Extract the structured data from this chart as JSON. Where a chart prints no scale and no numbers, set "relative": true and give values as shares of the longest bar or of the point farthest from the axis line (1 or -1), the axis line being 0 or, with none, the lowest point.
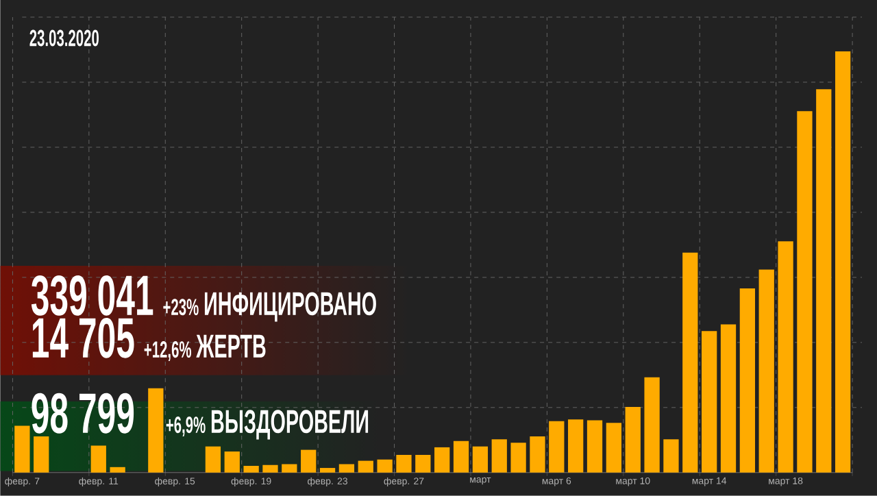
{
  "chart_data": {
    "type": "bar",
    "title": "23.03.2020",
    "annotations": [
      "339 041",
      "+23%",
      "ИНФИЦИРОВАНО",
      "14 705",
      "+12,6%",
      "ЖЕРТВ",
      "98 799",
      "+6,9%",
      "ВЫЗДОРОВЕЛИ"
    ],
    "categories": [
      "февр. 7",
      null,
      null,
      null,
      "февр. 11",
      null,
      null,
      null,
      "февр. 15",
      null,
      null,
      null,
      "февр. 19",
      null,
      null,
      null,
      "февр. 23",
      null,
      null,
      null,
      "февр. 27",
      null,
      null,
      null,
      "март",
      null,
      null,
      null,
      "март 6",
      null,
      null,
      null,
      "март 10",
      null,
      null,
      null,
      "март 14",
      null,
      null,
      null,
      "март 18",
      null,
      null,
      null
    ],
    "values": [
      0.111,
      0.086,
      null,
      null,
      0.064,
      0.013,
      null,
      0.2,
      null,
      null,
      0.062,
      0.05,
      0.016,
      0.018,
      0.02,
      0.054,
      0.011,
      0.02,
      0.028,
      0.031,
      0.042,
      0.042,
      0.06,
      0.075,
      0.062,
      0.079,
      0.071,
      0.086,
      0.122,
      0.126,
      0.124,
      0.118,
      0.156,
      0.226,
      0.079,
      0.522,
      0.336,
      0.352,
      0.437,
      0.482,
      0.549,
      0.858,
      0.91,
      1
    ],
    "color": "#ffab00",
    "relative": true,
    "grid": true
  }
}
